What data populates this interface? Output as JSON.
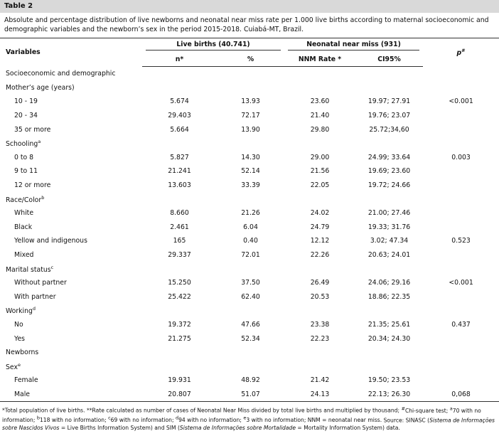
{
  "title": "Table 2",
  "caption": "Absolute and percentage distribution of live newborns and neonatal near miss rate per 1.000 live births according to maternal socioeconomic and demographic variables and the newborn’s sex in the period 2015-2018. Cuiabá-MT, Brazil.",
  "header": {
    "variables": "Variables",
    "group1": "Live births (40.741)",
    "group2": "Neonatal near miss (931)",
    "p_label": "p",
    "p_note": "#",
    "sub": [
      "n*",
      "%",
      "NNM Rate *",
      "CI95%"
    ]
  },
  "rows": [
    {
      "label": "Socioeconomic and demographic"
    },
    {
      "label": "Mother’s age (years)"
    },
    {
      "label": "10 - 19",
      "cells": [
        "5.674",
        "13.93",
        "23.60",
        "19.97; 27.91"
      ],
      "p": "<0.001"
    },
    {
      "label": "20 - 34",
      "cells": [
        "29.403",
        "72.17",
        "21.40",
        "19.76; 23.07"
      ]
    },
    {
      "label": "35 or more",
      "cells": [
        "5.664",
        "13.90",
        "29.80",
        "25.72;34,60"
      ]
    },
    {
      "label": "Schooling",
      "note": "a"
    },
    {
      "label": "0 to 8",
      "cells": [
        "5.827",
        "14.30",
        "29.00",
        "24.99; 33.64"
      ],
      "p": "0.003"
    },
    {
      "label": "9 to 11",
      "cells": [
        "21.241",
        "52.14",
        "21.56",
        "19.69; 23.60"
      ]
    },
    {
      "label": "12 or more",
      "cells": [
        "13.603",
        "33.39",
        "22.05",
        "19.72; 24.66"
      ]
    },
    {
      "label": "Race/Color",
      "note": "b"
    },
    {
      "label": "White",
      "cells": [
        "8.660",
        "21.26",
        "24.02",
        "21.00; 27.46"
      ]
    },
    {
      "label": "Black",
      "cells": [
        "2.461",
        "6.04",
        "24.79",
        "19.33; 31.76"
      ]
    },
    {
      "label": "Yellow and indigenous",
      "cells": [
        "165",
        "0.40",
        "12.12",
        "3.02; 47.34"
      ],
      "p": "0.523"
    },
    {
      "label": "Mixed",
      "cells": [
        "29.337",
        "72.01",
        "22.26",
        "20.63; 24.01"
      ]
    },
    {
      "label": "Marital status",
      "note": "c"
    },
    {
      "label": "Without partner",
      "cells": [
        "15.250",
        "37.50",
        "26.49",
        "24.06; 29.16"
      ],
      "p": "<0.001"
    },
    {
      "label": "With partner",
      "cells": [
        "25.422",
        "62.40",
        "20.53",
        "18.86; 22.35"
      ]
    },
    {
      "label": "Working",
      "note": "d"
    },
    {
      "label": "No",
      "cells": [
        "19.372",
        "47.66",
        "23.38",
        "21.35; 25.61"
      ],
      "p": "0.437"
    },
    {
      "label": "Yes",
      "cells": [
        "21.275",
        "52.34",
        "22.23",
        "20.34; 24.30"
      ]
    },
    {
      "label": "Newborns"
    },
    {
      "label": "Sex",
      "note": "e"
    },
    {
      "label": "Female",
      "cells": [
        "19.931",
        "48.92",
        "21.42",
        "19.50; 23.53"
      ]
    },
    {
      "label": "Male",
      "cells": [
        "20.807",
        "51.07",
        "24.13",
        "22.13; 26.30"
      ],
      "p": "0,068"
    }
  ],
  "footnotes": [
    {
      "text": "*Total population of live births."
    },
    {
      "text": "**Rate calculated as number of cases of Neonatal Near Miss divided by total live births and multiplied by thousand;"
    },
    {
      "mark": "#",
      "text": "Chi-square test;"
    },
    {
      "mark": "a",
      "text": "70 with no information;"
    },
    {
      "mark": "b",
      "text": "118 with no information;"
    },
    {
      "mark": "c",
      "text": "69 with no information;"
    },
    {
      "mark": "d",
      "text": "94 with no information;"
    },
    {
      "mark": "e",
      "text": "3 with no information; NNM = neonatal near miss."
    }
  ],
  "source": [
    "Source: SINASC (",
    "Sistema de Informações sobre Nascidos Vivos",
    " = Live Births Information System) and SIM (",
    "Sistema de Informações sobre Mortalidade",
    " = Mortality Information System) data."
  ]
}
